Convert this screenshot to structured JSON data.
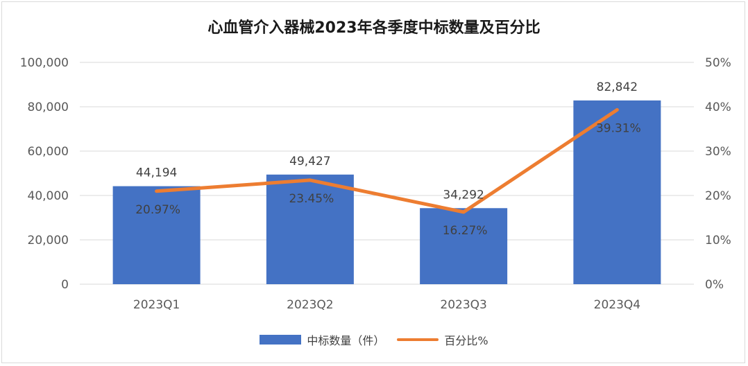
{
  "chart_data": {
    "type": "bar",
    "title": "心血管介入器械2023年各季度中标数量及百分比",
    "categories": [
      "2023Q1",
      "2023Q2",
      "2023Q3",
      "2023Q4"
    ],
    "series": [
      {
        "name": "中标数量（件）",
        "type": "bar",
        "axis": "left",
        "values": [
          44194,
          49427,
          34292,
          82842
        ],
        "labels": [
          "44,194",
          "49,427",
          "34,292",
          "82,842"
        ],
        "color": "#4472c4"
      },
      {
        "name": "百分比%",
        "type": "line",
        "axis": "right",
        "values": [
          20.97,
          23.45,
          16.27,
          39.31
        ],
        "labels": [
          "20.97%",
          "23.45%",
          "16.27%",
          "39.31%"
        ],
        "color": "#ed7d31"
      }
    ],
    "ylim": [
      0,
      100000
    ],
    "y2lim": [
      0,
      50
    ],
    "yticks": [
      "0",
      "20,000",
      "40,000",
      "60,000",
      "80,000",
      "100,000"
    ],
    "y2ticks": [
      "0%",
      "10%",
      "20%",
      "30%",
      "40%",
      "50%"
    ],
    "grid": true,
    "legend": "bottom-center"
  },
  "legend": {
    "bar_label": "中标数量（件）",
    "line_label": "百分比%"
  }
}
